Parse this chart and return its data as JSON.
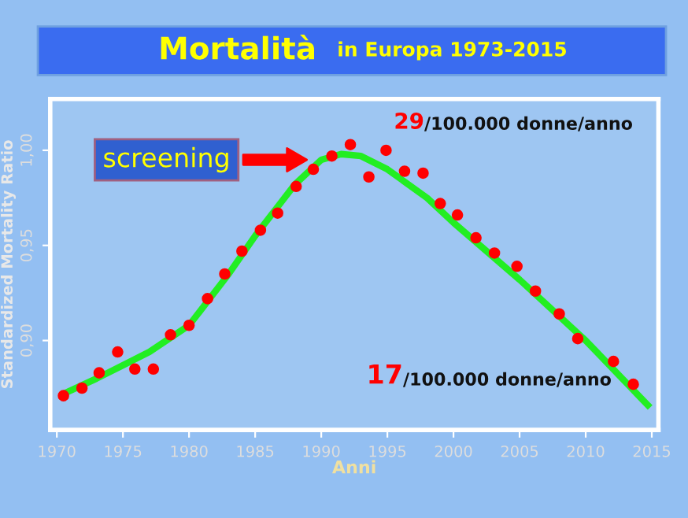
{
  "chart_data": {
    "type": "scatter",
    "title": "Mortalità",
    "subtitle": "in Europa 1973-2015",
    "xlabel": "Anni",
    "ylabel": "Standardized Mortality Ratio",
    "xlim": [
      1969.5,
      2015.5
    ],
    "xticks": [
      1970,
      1975,
      1980,
      1985,
      1990,
      1995,
      2000,
      2005,
      2010,
      2015
    ],
    "ylim": [
      0.853,
      1.027
    ],
    "yticks": [
      {
        "value": 0.9,
        "label": "0,90"
      },
      {
        "value": 0.95,
        "label": "0,95"
      },
      {
        "value": 1.0,
        "label": "1,00"
      }
    ],
    "grid": false,
    "legend": false,
    "marker": "circle",
    "series": [
      {
        "color": "#ff0000",
        "x": [
          1970.5,
          1971.9,
          1973.2,
          1974.6,
          1975.9,
          1977.3,
          1978.6,
          1980.0,
          1981.4,
          1982.7,
          1984.0,
          1985.4,
          1986.7,
          1988.1,
          1989.4,
          1990.8,
          1992.2,
          1993.6,
          1994.9,
          1996.3,
          1997.7,
          1999.0,
          2000.3,
          2001.7,
          2003.1,
          2004.8,
          2006.2,
          2008.0,
          2009.4,
          2012.1,
          2013.6
        ],
        "values": [
          0.871,
          0.875,
          0.883,
          0.894,
          0.885,
          0.885,
          0.903,
          0.908,
          0.922,
          0.935,
          0.947,
          0.958,
          0.967,
          0.981,
          0.99,
          0.997,
          1.003,
          0.986,
          1.0,
          0.989,
          0.988,
          0.972,
          0.966,
          0.954,
          0.946,
          0.939,
          0.926,
          0.914,
          0.901,
          0.889,
          0.877
        ]
      },
      {
        "type": "line",
        "color": "#22ee22",
        "line_style": "solid",
        "marker": "none",
        "x": [
          1970.5,
          1973,
          1975,
          1977,
          1980,
          1983,
          1985,
          1988,
          1990,
          1991.5,
          1993,
          1995,
          1998,
          2000,
          2005,
          2010,
          2014.7
        ],
        "values": [
          0.872,
          0.88,
          0.887,
          0.894,
          0.908,
          0.935,
          0.955,
          0.982,
          0.995,
          0.998,
          0.997,
          0.99,
          0.975,
          0.962,
          0.932,
          0.9,
          0.866
        ]
      }
    ],
    "annotations": [
      {
        "text": "screening",
        "x": 1988.9,
        "y": 0.995
      },
      "29/100.000 donne/anno",
      "17/100.000 donne/anno"
    ]
  }
}
